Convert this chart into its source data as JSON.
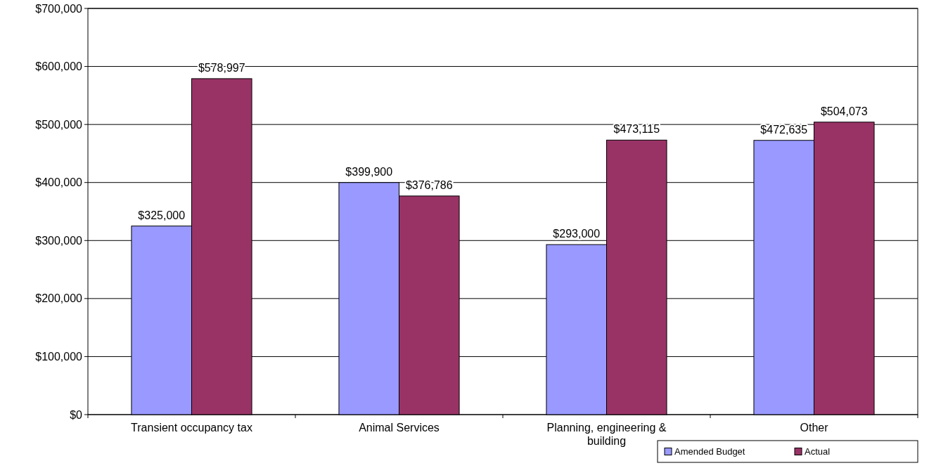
{
  "chart_data": {
    "type": "bar",
    "categories": [
      "Transient occupancy tax",
      "Animal Services",
      "Planning, engineering & building",
      "Other"
    ],
    "series": [
      {
        "name": "Amended Budget",
        "color": "#9999ff",
        "values": [
          325000,
          399900,
          293000,
          472635
        ],
        "value_labels": [
          "$325,000",
          "$399,900",
          "$293,000",
          "$472,635"
        ]
      },
      {
        "name": "Actual",
        "color": "#993366",
        "values": [
          578997,
          376786,
          473115,
          504073
        ],
        "value_labels": [
          "$578,997",
          "$376,786",
          "$473,115",
          "$504,073"
        ]
      }
    ],
    "ylim": [
      0,
      700000
    ],
    "yticks": [
      {
        "value": 0,
        "label": "$0"
      },
      {
        "value": 100000,
        "label": "$100,000"
      },
      {
        "value": 200000,
        "label": "$200,000"
      },
      {
        "value": 300000,
        "label": "$300,000"
      },
      {
        "value": 400000,
        "label": "$400,000"
      },
      {
        "value": 500000,
        "label": "$500,000"
      },
      {
        "value": 600000,
        "label": "$600,000"
      },
      {
        "value": 700000,
        "label": "$700,000"
      }
    ],
    "grid": "y",
    "legend": "bottom right"
  }
}
